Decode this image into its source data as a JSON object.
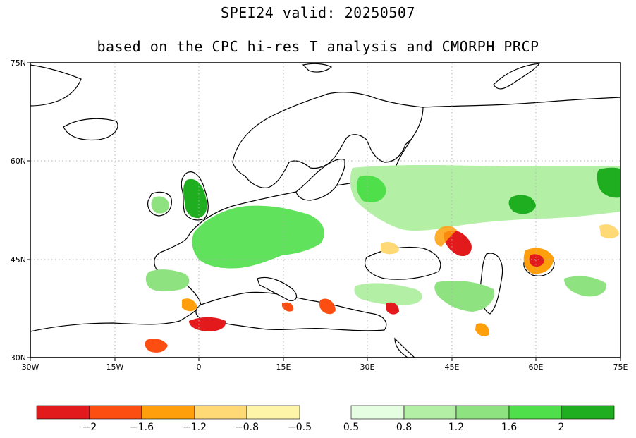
{
  "title_line1": "SPEI24  valid: 20250507",
  "title_line2": "based on the CPC hi-res T analysis and CMORPH PRCP",
  "map": {
    "lon_ticks": [
      {
        "value": -30,
        "label": "30W"
      },
      {
        "value": -15,
        "label": "15W"
      },
      {
        "value": 0,
        "label": "0"
      },
      {
        "value": 15,
        "label": "15E"
      },
      {
        "value": 30,
        "label": "30E"
      },
      {
        "value": 45,
        "label": "45E"
      },
      {
        "value": 60,
        "label": "60E"
      },
      {
        "value": 75,
        "label": "75E"
      }
    ],
    "lat_ticks": [
      {
        "value": 75,
        "label": "75N"
      },
      {
        "value": 60,
        "label": "60N"
      },
      {
        "value": 45,
        "label": "45N"
      },
      {
        "value": 30,
        "label": "30N"
      }
    ],
    "lon_range": [
      -30,
      75
    ],
    "lat_range": [
      30,
      75
    ],
    "gridlines": "dotted"
  },
  "colorbar": {
    "dry_colors": [
      "#e31a1c",
      "#fc4e10",
      "#fe9f0b",
      "#fed976",
      "#fff5a8"
    ],
    "wet_colors": [
      "#e5fde0",
      "#b3f0a6",
      "#8ee27f",
      "#4fdf4a",
      "#1fae1f"
    ],
    "labels": [
      "−2",
      "−1.6",
      "−1.2",
      "−0.8",
      "−0.5",
      "0.5",
      "0.8",
      "1.2",
      "1.6",
      "2"
    ]
  }
}
